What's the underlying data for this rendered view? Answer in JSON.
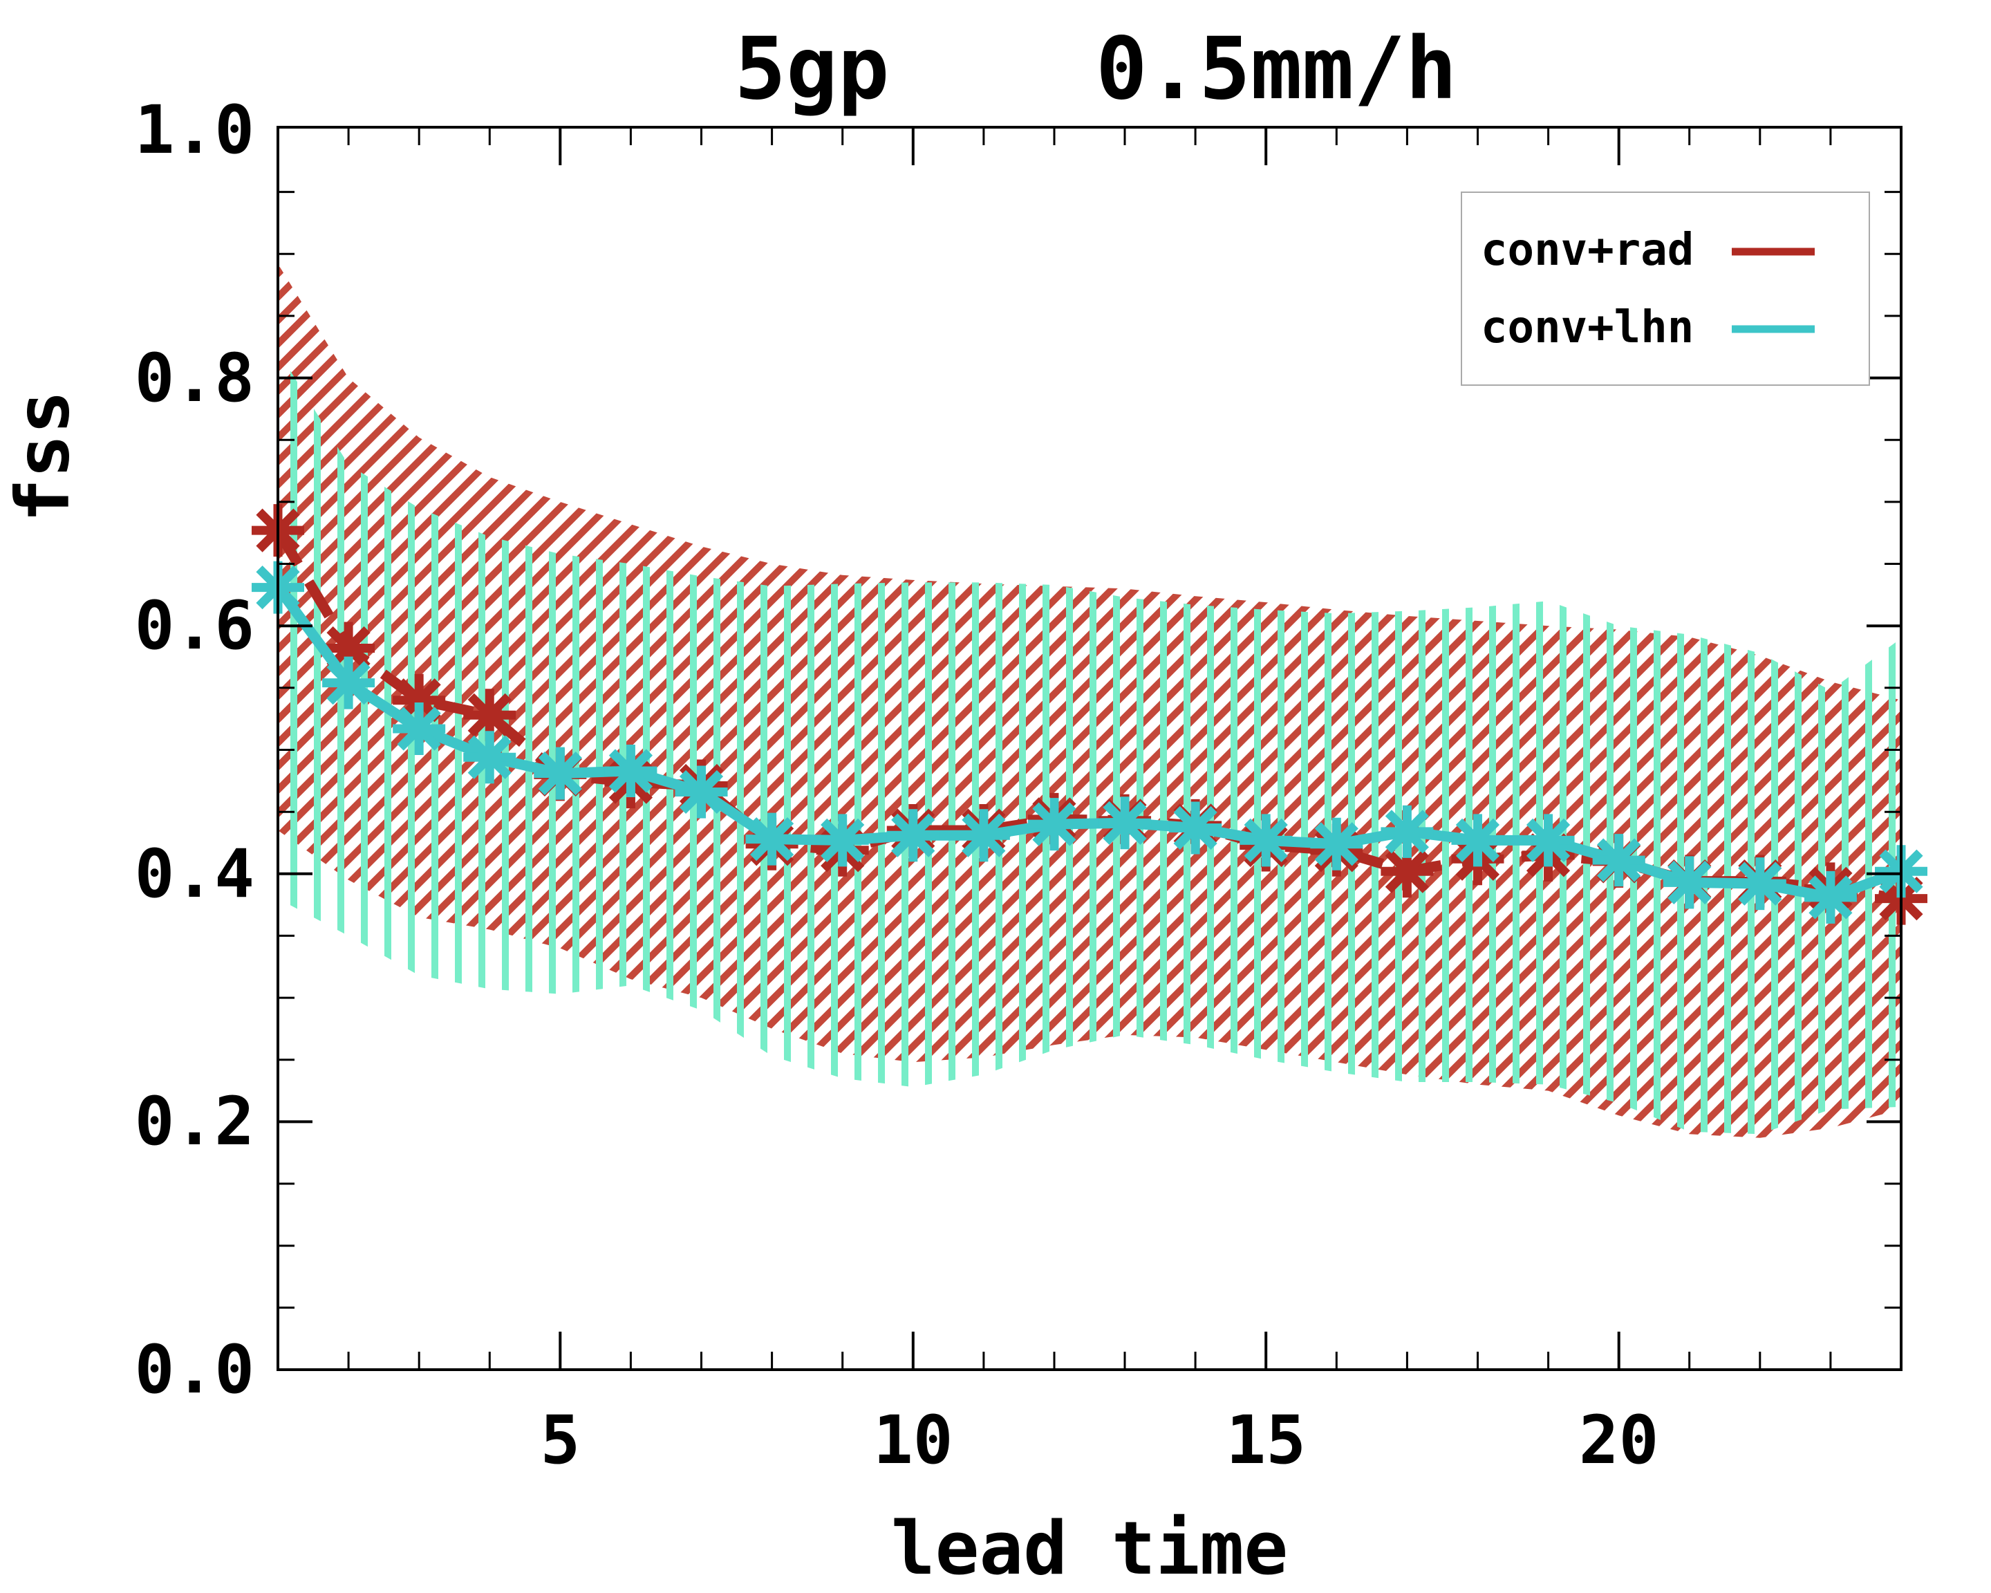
{
  "title": "5gp    0.5mm/h",
  "legend": {
    "items": [
      {
        "label": "conv+rad",
        "color": "#B02A22"
      },
      {
        "label": "conv+lhn",
        "color": "#3DC5C8"
      }
    ]
  },
  "chart_data": {
    "type": "line",
    "title": "5gp    0.5mm/h",
    "xlabel": "lead time",
    "ylabel": "fss",
    "xlim": [
      1,
      24
    ],
    "ylim": [
      0.0,
      1.0
    ],
    "grid": false,
    "legend_position": "top-right",
    "x": [
      1,
      2,
      3,
      4,
      5,
      6,
      7,
      8,
      9,
      10,
      11,
      12,
      13,
      14,
      15,
      16,
      17,
      18,
      19,
      20,
      21,
      22,
      23,
      24
    ],
    "xticks": [
      5,
      10,
      15,
      20
    ],
    "xtick_labels": [
      "5",
      "10",
      "15",
      "20"
    ],
    "yticks": [
      0.0,
      0.2,
      0.4,
      0.6,
      0.8,
      1.0
    ],
    "ytick_labels": [
      "0.0",
      "0.2",
      "0.4",
      "0.6",
      "0.8",
      "1.0"
    ],
    "series": [
      {
        "name": "conv+rad",
        "color": "#B02A22",
        "hatch_color": "#C4483A",
        "hatch": "diagonal",
        "line_style": "dashed",
        "marker": "asterisk",
        "values": [
          0.677,
          0.582,
          0.54,
          0.528,
          0.48,
          0.474,
          0.471,
          0.424,
          0.419,
          0.435,
          0.435,
          0.444,
          0.443,
          0.439,
          0.423,
          0.419,
          0.402,
          0.412,
          0.415,
          0.41,
          0.394,
          0.394,
          0.388,
          0.38
        ],
        "band_upper": [
          0.892,
          0.8,
          0.752,
          0.72,
          0.7,
          0.682,
          0.664,
          0.65,
          0.641,
          0.637,
          0.634,
          0.632,
          0.63,
          0.624,
          0.619,
          0.613,
          0.608,
          0.604,
          0.6,
          0.597,
          0.591,
          0.576,
          0.555,
          0.54
        ],
        "band_lower": [
          0.435,
          0.395,
          0.365,
          0.355,
          0.34,
          0.315,
          0.3,
          0.275,
          0.255,
          0.248,
          0.252,
          0.262,
          0.27,
          0.268,
          0.258,
          0.248,
          0.238,
          0.23,
          0.225,
          0.205,
          0.19,
          0.187,
          0.195,
          0.21
        ]
      },
      {
        "name": "conv+lhn",
        "color": "#3DC5C8",
        "hatch_color": "#77EDC8",
        "hatch": "vertical",
        "line_style": "solid",
        "marker": "asterisk",
        "values": [
          0.631,
          0.554,
          0.517,
          0.494,
          0.481,
          0.483,
          0.466,
          0.428,
          0.427,
          0.431,
          0.431,
          0.44,
          0.441,
          0.437,
          0.427,
          0.424,
          0.434,
          0.427,
          0.427,
          0.411,
          0.393,
          0.392,
          0.381,
          0.402
        ],
        "band_upper": [
          0.822,
          0.73,
          0.695,
          0.672,
          0.658,
          0.65,
          0.64,
          0.632,
          0.634,
          0.635,
          0.635,
          0.633,
          0.623,
          0.617,
          0.613,
          0.61,
          0.612,
          0.615,
          0.62,
          0.6,
          0.593,
          0.578,
          0.548,
          0.59
        ],
        "band_lower": [
          0.38,
          0.35,
          0.318,
          0.307,
          0.303,
          0.31,
          0.29,
          0.253,
          0.235,
          0.228,
          0.238,
          0.258,
          0.27,
          0.262,
          0.25,
          0.24,
          0.232,
          0.232,
          0.23,
          0.215,
          0.192,
          0.19,
          0.21,
          0.212
        ]
      }
    ]
  },
  "colors": {
    "frame": "#000000",
    "background": "#ffffff",
    "legend_border": "#aaaaaa"
  }
}
